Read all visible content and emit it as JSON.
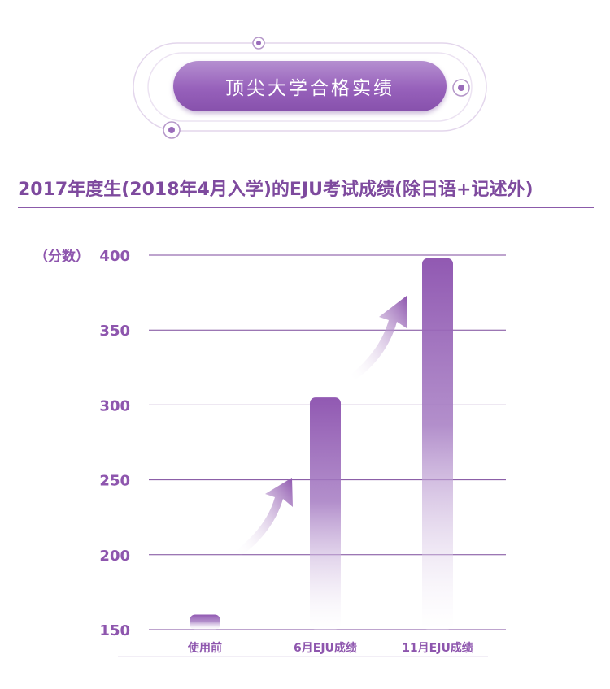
{
  "header": {
    "title": "顶尖大学合格实绩",
    "subtitle": "2017年度生(2018年4月入学)的EJU考试成绩(除日语+记述外)"
  },
  "colors": {
    "accent": "#8e56ae",
    "axis_text": "#8e56ae",
    "grid": "#7c4a9c",
    "bar_top": "#9159b2"
  },
  "chart_data": {
    "type": "bar",
    "ylabel": "（分数）",
    "categories": [
      "使用前",
      "6月EJU成绩",
      "11月EJU成绩"
    ],
    "values": [
      160,
      305,
      398
    ],
    "ylim": [
      150,
      400
    ],
    "yticks": [
      150,
      200,
      250,
      300,
      350,
      400
    ],
    "grid": true,
    "legend": "none"
  }
}
